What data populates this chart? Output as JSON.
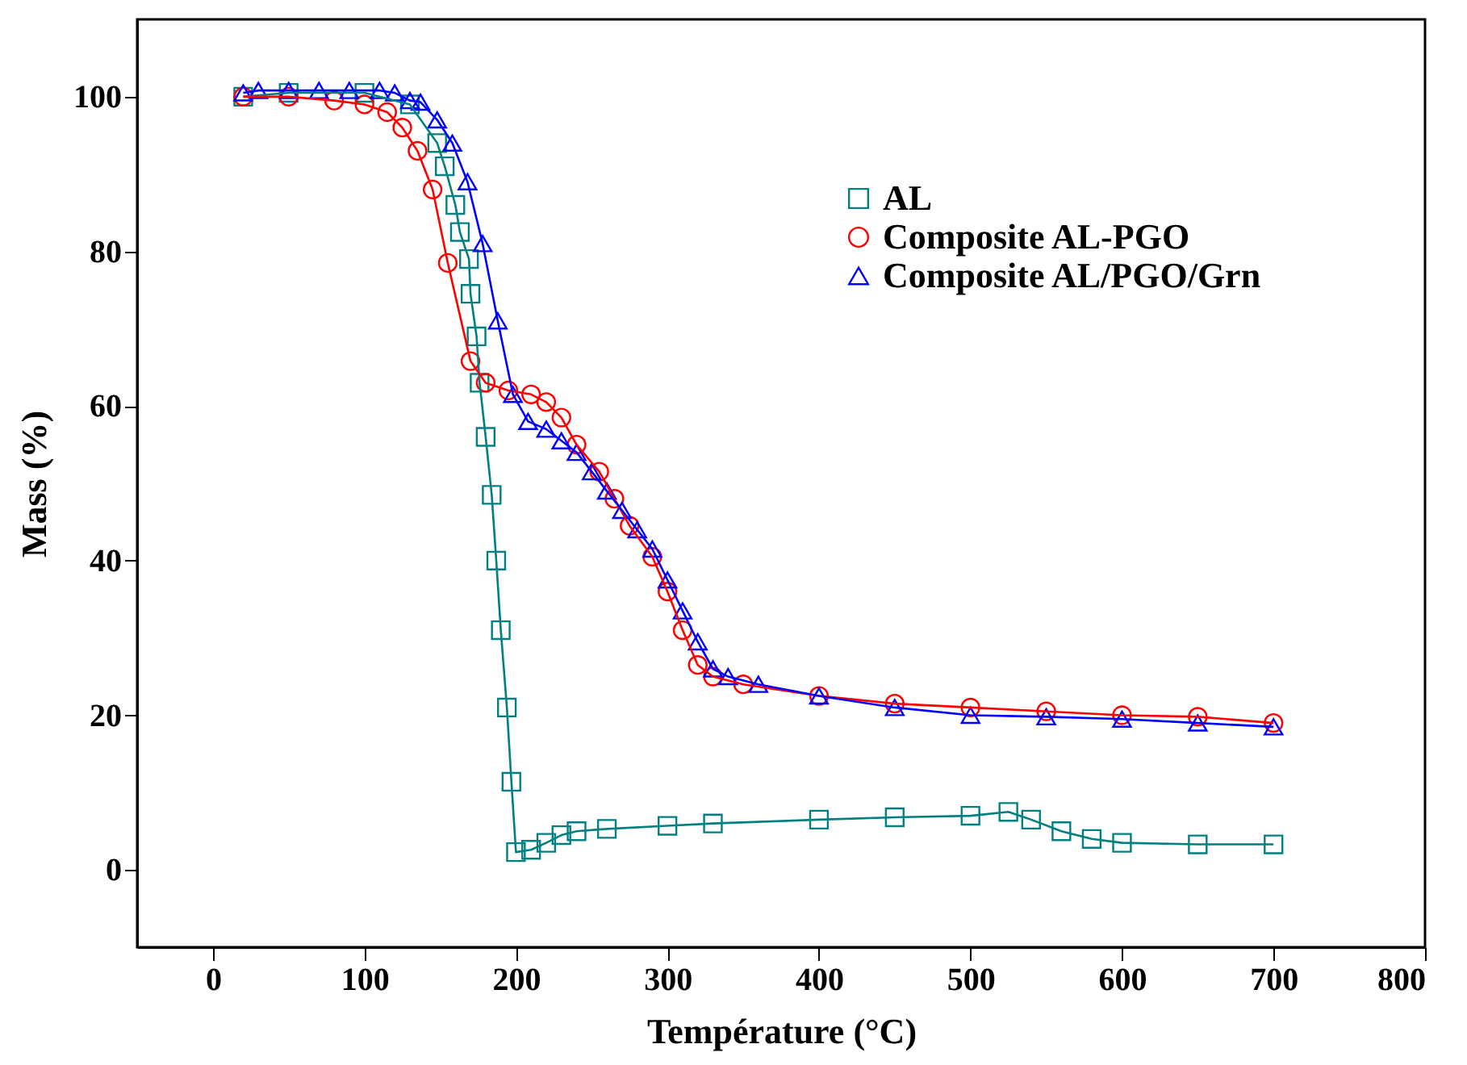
{
  "chart_data": {
    "type": "line",
    "xlabel": "Température (°C)",
    "ylabel": "Mass (%)",
    "xlim": [
      -50,
      800
    ],
    "ylim": [
      -10,
      110
    ],
    "xticks": [
      0,
      100,
      200,
      300,
      400,
      500,
      600,
      700,
      800
    ],
    "yticks": [
      0,
      20,
      40,
      60,
      80,
      100
    ],
    "grid": false,
    "legend": "top right",
    "line_style": "solid",
    "series": [
      {
        "name": "AL",
        "color": "#008080",
        "marker": "square",
        "x": [
          20,
          50,
          100,
          130,
          148,
          153,
          160,
          163,
          169,
          170,
          174,
          176,
          180,
          184,
          187,
          190,
          194,
          197,
          200,
          210,
          220,
          230,
          240,
          260,
          300,
          330,
          400,
          450,
          500,
          525,
          540,
          560,
          580,
          600,
          650,
          700
        ],
        "values": [
          100,
          100.5,
          100.5,
          99,
          94,
          91,
          86,
          82.5,
          79,
          74.5,
          69,
          63,
          56,
          48.5,
          40,
          31,
          21,
          11.4,
          2.3,
          2.6,
          3.5,
          4.5,
          5,
          5.3,
          5.7,
          6,
          6.5,
          6.8,
          7,
          7.5,
          6.5,
          5,
          4,
          3.5,
          3.3,
          3.3
        ]
      },
      {
        "name": "Composite AL-PGO",
        "color": "#ff0000",
        "marker": "circle",
        "x": [
          20,
          50,
          80,
          100,
          115,
          125,
          135,
          145,
          155,
          170,
          180,
          195,
          210,
          220,
          230,
          240,
          255,
          265,
          275,
          290,
          300,
          310,
          320,
          330,
          350,
          400,
          450,
          500,
          550,
          600,
          650,
          700
        ],
        "values": [
          100,
          100,
          99.5,
          99,
          98,
          96,
          93,
          88,
          78.5,
          65.8,
          63,
          62,
          61.5,
          60.5,
          58.5,
          55,
          51.5,
          48,
          44.5,
          40.5,
          36,
          31,
          26.5,
          25,
          24,
          22.5,
          21.5,
          21,
          20.5,
          20,
          19.8,
          19
        ]
      },
      {
        "name": "Composite AL/PGO/Grn",
        "color": "#0000ff",
        "marker": "triangle",
        "x": [
          20,
          30,
          50,
          70,
          90,
          110,
          120,
          130,
          137,
          148,
          158,
          168,
          178,
          188,
          198,
          208,
          220,
          230,
          240,
          250,
          260,
          270,
          280,
          290,
          300,
          310,
          320,
          330,
          340,
          360,
          400,
          450,
          500,
          550,
          600,
          650,
          700
        ],
        "values": [
          100.5,
          100.8,
          100.8,
          100.8,
          100.8,
          100.8,
          100.5,
          99.5,
          99.3,
          97,
          94,
          89,
          81,
          71,
          61.5,
          58,
          57,
          55.5,
          54,
          51.5,
          49,
          46.5,
          44,
          41.5,
          37.5,
          33.5,
          29.5,
          26,
          25,
          24,
          22.5,
          21,
          20,
          19.8,
          19.5,
          19,
          18.5
        ]
      }
    ]
  }
}
